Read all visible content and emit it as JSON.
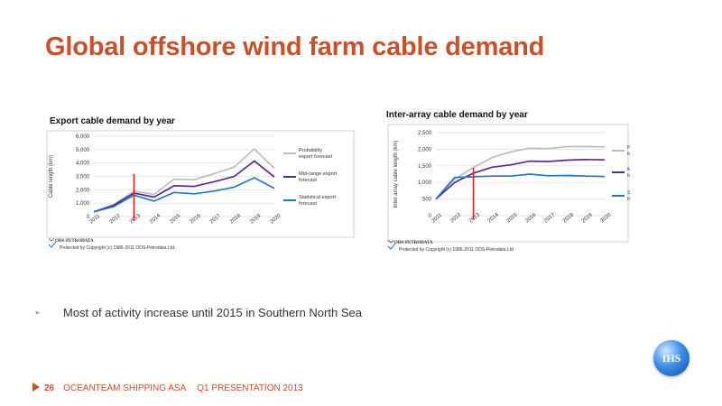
{
  "slide": {
    "title": "Global offshore wind farm cable demand",
    "bullet": "Most of activity increase until 2015 in Southern North Sea",
    "bullet_marker": "➢",
    "footer": {
      "page": "26",
      "company": "OCEANTEAM SHIPPING ASA",
      "presentation": "Q1 PRESENTATION 2013"
    },
    "logo_text": "IHS"
  },
  "colors": {
    "title": "#c8512a",
    "probability": "#bdbdbd",
    "midrange": "#5b2a8c",
    "statistical": "#1f78c8",
    "marker_line": "#e02020"
  },
  "chart_data": [
    {
      "type": "line",
      "title": "Export cable demand by year",
      "xlabel": "",
      "ylabel": "Cable length (km)",
      "x": [
        "2011",
        "2012",
        "2013",
        "2014",
        "2015",
        "2016",
        "2017",
        "2018",
        "2019",
        "2020"
      ],
      "ylim": [
        0,
        6000
      ],
      "yticks": [
        0,
        1000,
        2000,
        3000,
        4000,
        5000,
        6000
      ],
      "ytick_labels": [
        "0",
        "1,000",
        "2,000",
        "3,000",
        "4,000",
        "5,000",
        "6,000"
      ],
      "grid": true,
      "legend": "right",
      "marker_x": "2013",
      "series": [
        {
          "name": "Probability export forecast",
          "values": [
            350,
            900,
            1900,
            1650,
            2800,
            2750,
            3200,
            3700,
            5050,
            3600
          ]
        },
        {
          "name": "Mid-range export forecast",
          "values": [
            350,
            850,
            1750,
            1450,
            2300,
            2250,
            2600,
            3000,
            4150,
            2950
          ]
        },
        {
          "name": "Statistical export forecast",
          "values": [
            350,
            750,
            1600,
            1150,
            1800,
            1700,
            1900,
            2200,
            2900,
            2100
          ]
        }
      ],
      "source": "ODS-PETRODATA",
      "copyright": "Protected by Copyright (c) 1986-2011 ODS-Petrodata Ltd."
    },
    {
      "type": "line",
      "title": "Inter-array cable demand by year",
      "xlabel": "",
      "ylabel": "Inter array cable length (km)",
      "x": [
        "2011",
        "2012",
        "2013",
        "2014",
        "2015",
        "2016",
        "2017",
        "2018",
        "2019",
        "2020"
      ],
      "ylim": [
        0,
        2500
      ],
      "yticks": [
        0,
        500,
        1000,
        1500,
        2000,
        2500
      ],
      "ytick_labels": [
        "0",
        "500",
        "1,000",
        "1,500",
        "2,000",
        "2,500"
      ],
      "grid": true,
      "legend": "right",
      "marker_x": "2013",
      "series": [
        {
          "name": "Probability inter-array forecast",
          "values": [
            500,
            1100,
            1450,
            1750,
            1920,
            2030,
            2020,
            2080,
            2080,
            2070
          ]
        },
        {
          "name": "Mid-range inter-array forecast",
          "values": [
            500,
            1000,
            1280,
            1460,
            1530,
            1640,
            1630,
            1670,
            1690,
            1680
          ]
        },
        {
          "name": "Statistical inter-array forecast",
          "values": [
            500,
            1150,
            1170,
            1190,
            1190,
            1250,
            1200,
            1210,
            1190,
            1180
          ]
        }
      ],
      "source": "ODS-PETRODATA",
      "copyright": "Protected by Copyright (c) 1986-2011 ODS-Petrodata Ltd"
    }
  ]
}
